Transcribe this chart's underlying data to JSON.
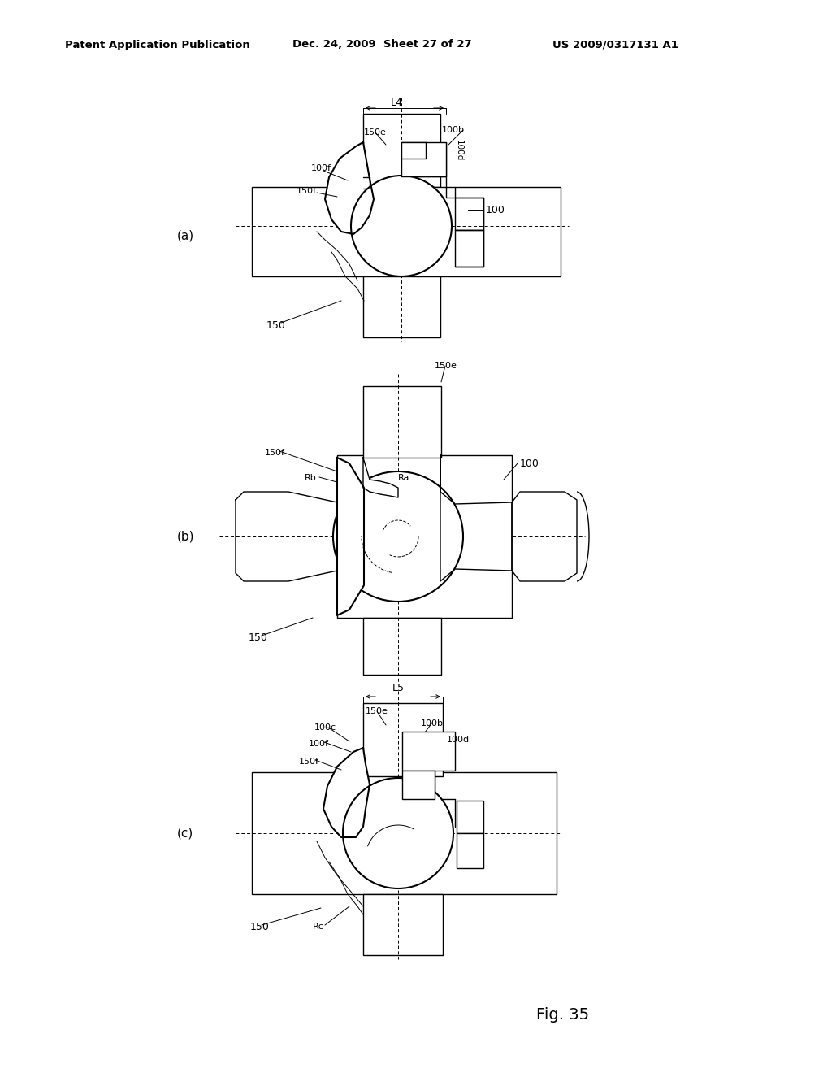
{
  "title_left": "Patent Application Publication",
  "title_mid": "Dec. 24, 2009  Sheet 27 of 27",
  "title_right": "US 2009/0317131 A1",
  "fig_label": "Fig. 35",
  "background_color": "#ffffff",
  "line_color": "#000000"
}
